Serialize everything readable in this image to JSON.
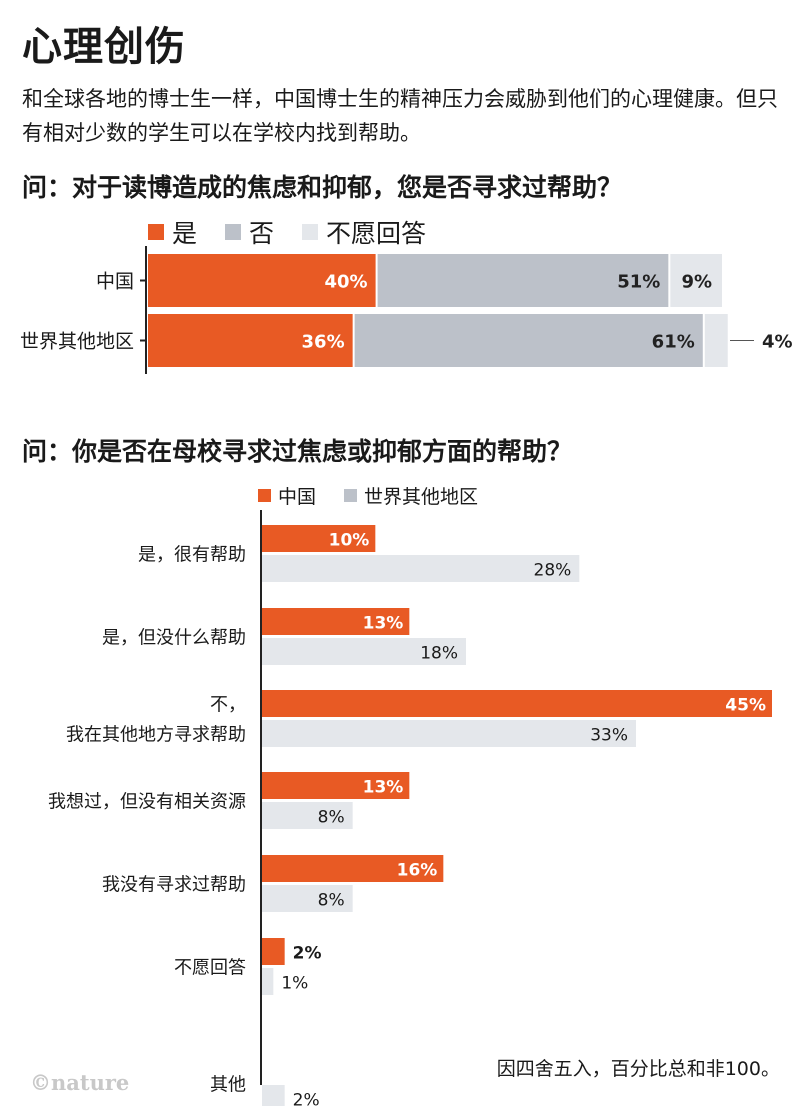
{
  "title": "心理创伤",
  "intro": "和全球各地的博士生一样，中国博士生的精神压力会威胁到他们的心理健康。但只有相对少数的学生可以在学校内找到帮助。",
  "colors": {
    "orange": "#e85a24",
    "gray": "#bcc1c9",
    "light": "#e4e7eb",
    "axis": "#222222"
  },
  "chart_data": [
    {
      "type": "bar",
      "stacked": true,
      "orientation": "horizontal",
      "title": "问：对于读博造成的焦虑和抑郁，您是否寻求过帮助？",
      "categories": [
        "中国",
        "世界其他地区"
      ],
      "series": [
        {
          "name": "是",
          "color": "#e85a24",
          "values": [
            40,
            36
          ],
          "labels": [
            "40%",
            "36%"
          ]
        },
        {
          "name": "否",
          "color": "#bcc1c9",
          "values": [
            51,
            61
          ],
          "labels": [
            "51%",
            "61%"
          ]
        },
        {
          "name": "不愿回答",
          "color": "#e4e7eb",
          "values": [
            9,
            4
          ],
          "labels": [
            "9%",
            "4%"
          ]
        }
      ]
    },
    {
      "type": "bar",
      "orientation": "horizontal",
      "title": "问：你是否在母校寻求过焦虑或抑郁方面的帮助？",
      "categories": [
        "是，很有帮助",
        "是，但没什么帮助",
        "不，我在其他地方寻求帮助",
        "我想过，但没有相关资源",
        "我没有寻求过帮助",
        "不愿回答",
        "其他"
      ],
      "category_lines": [
        [
          "是，很有帮助"
        ],
        [
          "是，但没什么帮助"
        ],
        [
          "不，",
          "我在其他地方寻求帮助"
        ],
        [
          "我想过，但没有相关资源"
        ],
        [
          "我没有寻求过帮助"
        ],
        [
          "不愿回答"
        ],
        [
          "其他"
        ]
      ],
      "series": [
        {
          "name": "中国",
          "color": "#e85a24",
          "values": [
            10,
            13,
            45,
            13,
            16,
            2,
            null
          ],
          "labels": [
            "10%",
            "13%",
            "45%",
            "13%",
            "16%",
            "2%",
            ""
          ]
        },
        {
          "name": "世界其他地区",
          "color": "#e4e7eb",
          "values": [
            28,
            18,
            33,
            8,
            8,
            1,
            2
          ],
          "labels": [
            "28%",
            "18%",
            "33%",
            "8%",
            "8%",
            "1%",
            "2%"
          ]
        }
      ],
      "xlim": [
        0,
        45
      ]
    }
  ],
  "footnote": "因四舍五入，百分比总和非100。",
  "logo": "©nature"
}
